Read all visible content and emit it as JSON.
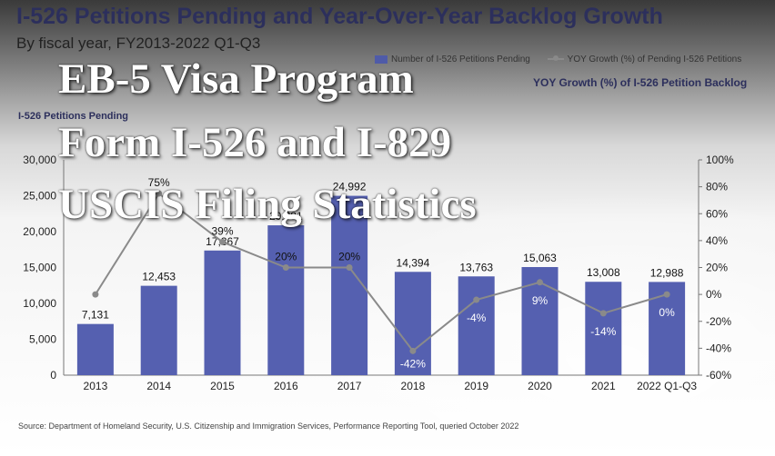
{
  "overlay": {
    "line1": "EB-5 Visa Program",
    "line2": "Form I-526 and I-829",
    "line3": "USCIS Filing Statistics"
  },
  "chart_data": {
    "type": "bar",
    "title": "I-526 Petitions Pending and Year-Over-Year Backlog Growth",
    "subtitle": "By fiscal year, FY2013-2022 Q1-Q3",
    "y1label": "I-526 Petitions Pending",
    "y2label": "YOY Growth (%) of I-526 Petition Backlog",
    "source": "Source: Department of Homeland Security, U.S. Citizenship and Immigration Services, Performance Reporting Tool, queried October 2022",
    "categories": [
      "2013",
      "2014",
      "2015",
      "2016",
      "2017",
      "2018",
      "2019",
      "2020",
      "2021",
      "2022 Q1-Q3"
    ],
    "series": [
      {
        "name": "Number of I-526 Petitions Pending",
        "kind": "bar",
        "axis": "left",
        "color": "#5560b0",
        "values": [
          7131,
          12453,
          17367,
          20881,
          24992,
          14394,
          13763,
          15063,
          13008,
          12988
        ],
        "labels": [
          "7,131",
          "12,453",
          "17,367",
          "20,881",
          "24,992",
          "14,394",
          "13,763",
          "15,063",
          "13,008",
          "12,988"
        ]
      },
      {
        "name": "YOY Growth (%) of Pending I-526 Petitions",
        "kind": "line",
        "axis": "right",
        "color": "#8a8a8a",
        "values": [
          0,
          75,
          39,
          20,
          20,
          -42,
          -4,
          9,
          -14,
          0
        ],
        "labels": [
          "",
          "75%",
          "39%",
          "20%",
          "20%",
          "-42%",
          "-4%",
          "9%",
          "-14%",
          "0%"
        ]
      }
    ],
    "y1lim": [
      0,
      30000
    ],
    "y1ticks": [
      "0",
      "5,000",
      "10,000",
      "15,000",
      "20,000",
      "25,000",
      "30,000"
    ],
    "y2lim": [
      -60,
      100
    ],
    "y2ticks": [
      "-60%",
      "-40%",
      "-20%",
      "0%",
      "20%",
      "40%",
      "60%",
      "80%",
      "100%"
    ],
    "grid": false,
    "legend_position": "top-right"
  }
}
